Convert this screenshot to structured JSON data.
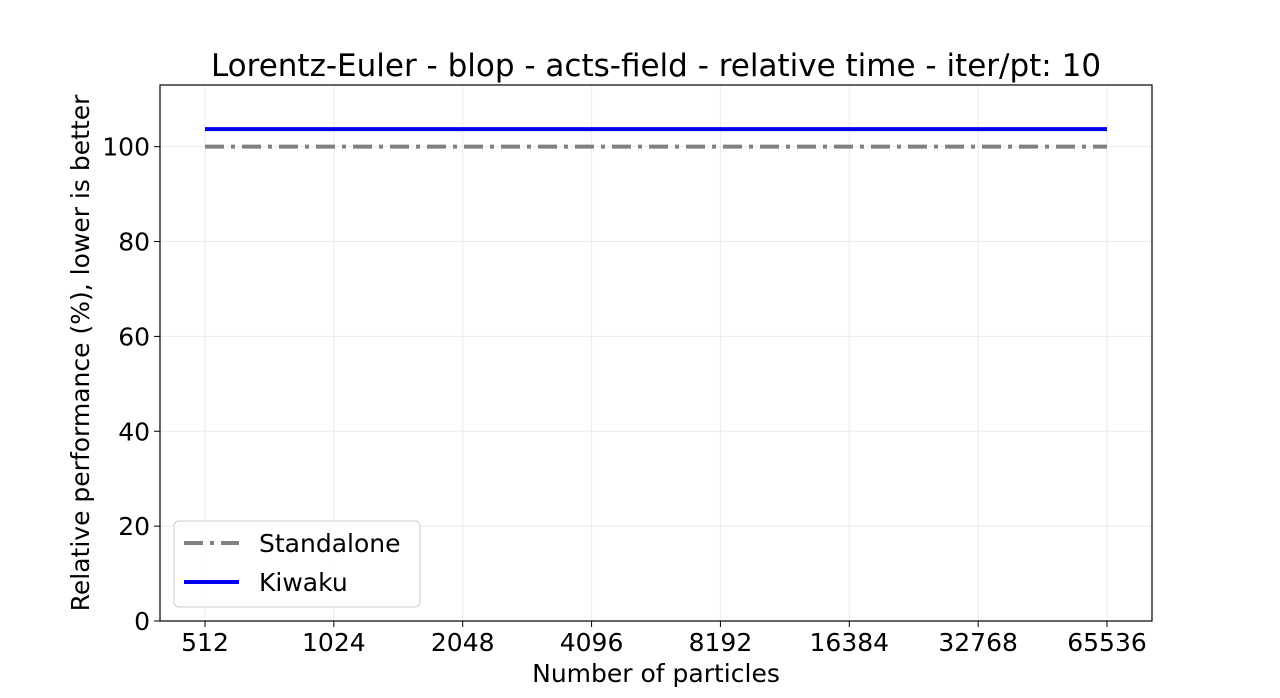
{
  "chart_data": {
    "type": "line",
    "title": "Lorentz-Euler - blop - acts-field - relative time - iter/pt: 10",
    "xlabel": "Number of particles",
    "ylabel": "Relative performance (%), lower is better",
    "categories": [
      "512",
      "1024",
      "2048",
      "4096",
      "8192",
      "16384",
      "32768",
      "65536"
    ],
    "ylim": [
      0,
      113
    ],
    "yticks": [
      0,
      20,
      40,
      60,
      80,
      100
    ],
    "grid": true,
    "legend_position": "bottom-left",
    "series": [
      {
        "name": "Standalone",
        "values": [
          100,
          100,
          100,
          100,
          100,
          100,
          100,
          100
        ],
        "color": "#808080",
        "style": "dashdot"
      },
      {
        "name": "Kiwaku",
        "values": [
          103.7,
          103.7,
          103.7,
          103.7,
          103.7,
          103.7,
          103.7,
          103.7
        ],
        "color": "#0000ee",
        "style": "solid"
      }
    ]
  }
}
